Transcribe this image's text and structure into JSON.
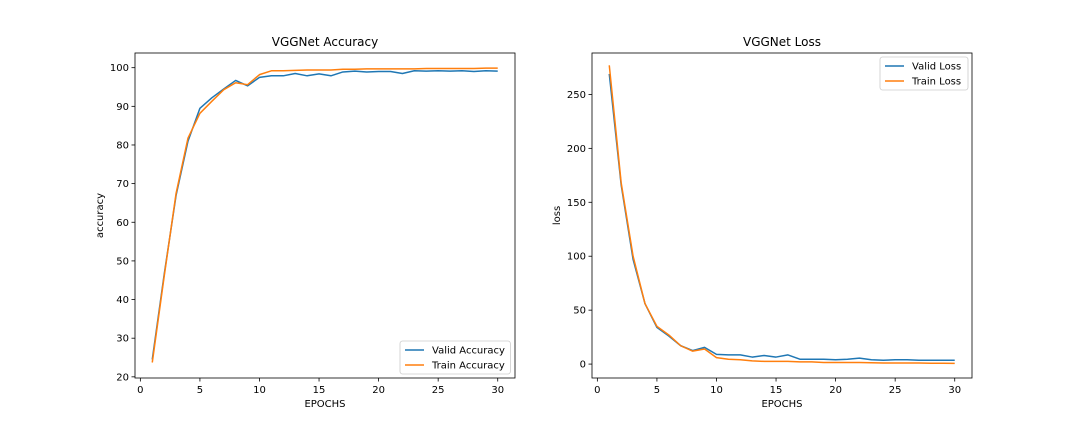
{
  "chart_data": [
    {
      "type": "line",
      "title": "VGGNet Accuracy",
      "xlabel": "EPOCHS",
      "ylabel": "accuracy",
      "xlim": [
        -0.45,
        31.45
      ],
      "ylim": [
        19.7,
        103.8
      ],
      "xticks": [
        0,
        5,
        10,
        15,
        20,
        25,
        30
      ],
      "yticks": [
        20,
        30,
        40,
        50,
        60,
        70,
        80,
        90,
        100
      ],
      "legend_position": "lower right",
      "grid": false,
      "x": [
        1,
        2,
        3,
        4,
        5,
        6,
        7,
        8,
        9,
        10,
        11,
        12,
        13,
        14,
        15,
        16,
        17,
        18,
        19,
        20,
        21,
        22,
        23,
        24,
        25,
        26,
        27,
        28,
        29,
        30
      ],
      "series": [
        {
          "name": "Valid Accuracy",
          "color": "#1f77b4",
          "values": [
            24.5,
            46.5,
            67.0,
            81.0,
            89.5,
            92.2,
            94.5,
            96.7,
            95.3,
            97.5,
            97.9,
            97.9,
            98.5,
            97.9,
            98.4,
            97.9,
            98.9,
            99.1,
            98.9,
            99.0,
            99.0,
            98.5,
            99.2,
            99.1,
            99.2,
            99.1,
            99.2,
            99.0,
            99.2,
            99.1
          ]
        },
        {
          "name": "Train Accuracy",
          "color": "#ff7f0e",
          "values": [
            23.7,
            46.0,
            67.5,
            81.8,
            88.2,
            91.3,
            94.3,
            96.1,
            95.6,
            98.2,
            99.2,
            99.2,
            99.3,
            99.4,
            99.4,
            99.4,
            99.6,
            99.6,
            99.7,
            99.7,
            99.7,
            99.7,
            99.7,
            99.8,
            99.8,
            99.8,
            99.8,
            99.8,
            99.9,
            99.9
          ]
        }
      ]
    },
    {
      "type": "line",
      "title": "VGGNet Loss",
      "xlabel": "EPOCHS",
      "ylabel": "loss",
      "xlim": [
        -0.45,
        31.45
      ],
      "ylim": [
        -12.9,
        288.4
      ],
      "xticks": [
        0,
        5,
        10,
        15,
        20,
        25,
        30
      ],
      "yticks": [
        0,
        50,
        100,
        150,
        200,
        250
      ],
      "legend_position": "upper right",
      "grid": false,
      "x": [
        1,
        2,
        3,
        4,
        5,
        6,
        7,
        8,
        9,
        10,
        11,
        12,
        13,
        14,
        15,
        16,
        17,
        18,
        19,
        20,
        21,
        22,
        23,
        24,
        25,
        26,
        27,
        28,
        29,
        30
      ],
      "series": [
        {
          "name": "Valid Loss",
          "color": "#1f77b4",
          "values": [
            269,
            166,
            97,
            56,
            34,
            26,
            17,
            12.5,
            15.5,
            9,
            8.5,
            8.5,
            6.5,
            8,
            6.5,
            8.5,
            4.5,
            4.5,
            4.5,
            4,
            4.5,
            5.5,
            4,
            3.5,
            4,
            4,
            3.5,
            3.5,
            3.5,
            3.5
          ]
        },
        {
          "name": "Train Loss",
          "color": "#ff7f0e",
          "values": [
            277,
            168,
            100,
            56,
            35,
            27,
            17,
            12,
            14,
            6,
            4.5,
            4,
            3,
            2.5,
            2.5,
            2.5,
            2,
            2,
            1.5,
            1.5,
            1.5,
            1.5,
            1.2,
            1,
            1,
            1,
            1,
            0.8,
            0.8,
            0.7
          ]
        }
      ]
    }
  ]
}
